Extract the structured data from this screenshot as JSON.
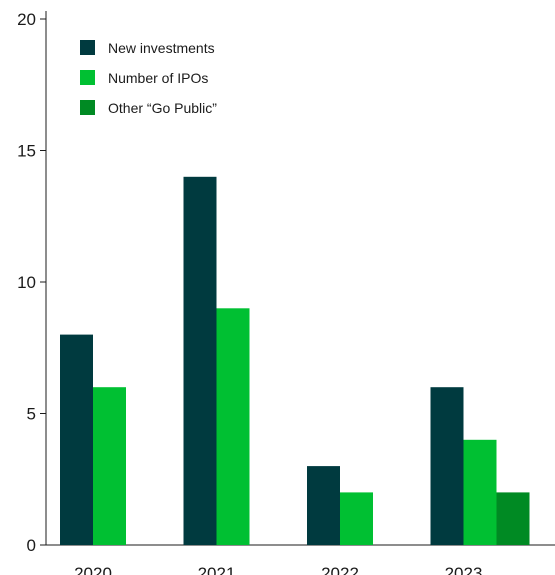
{
  "chart_data": {
    "type": "bar",
    "categories": [
      "2020",
      "2021",
      "2022",
      "2023"
    ],
    "series": [
      {
        "name": "New investments",
        "color": "#003a3f",
        "values": [
          8,
          14,
          3,
          6
        ]
      },
      {
        "name": "Number of IPOs",
        "color": "#00c032",
        "values": [
          6,
          9,
          2,
          4
        ]
      },
      {
        "name": "Other “Go Public”",
        "color": "#008a23",
        "values": [
          null,
          null,
          null,
          2
        ]
      }
    ],
    "ylim": [
      0,
      20
    ],
    "yticks": [
      0,
      5,
      10,
      15,
      20
    ],
    "legend": "top-left",
    "grid": false
  }
}
